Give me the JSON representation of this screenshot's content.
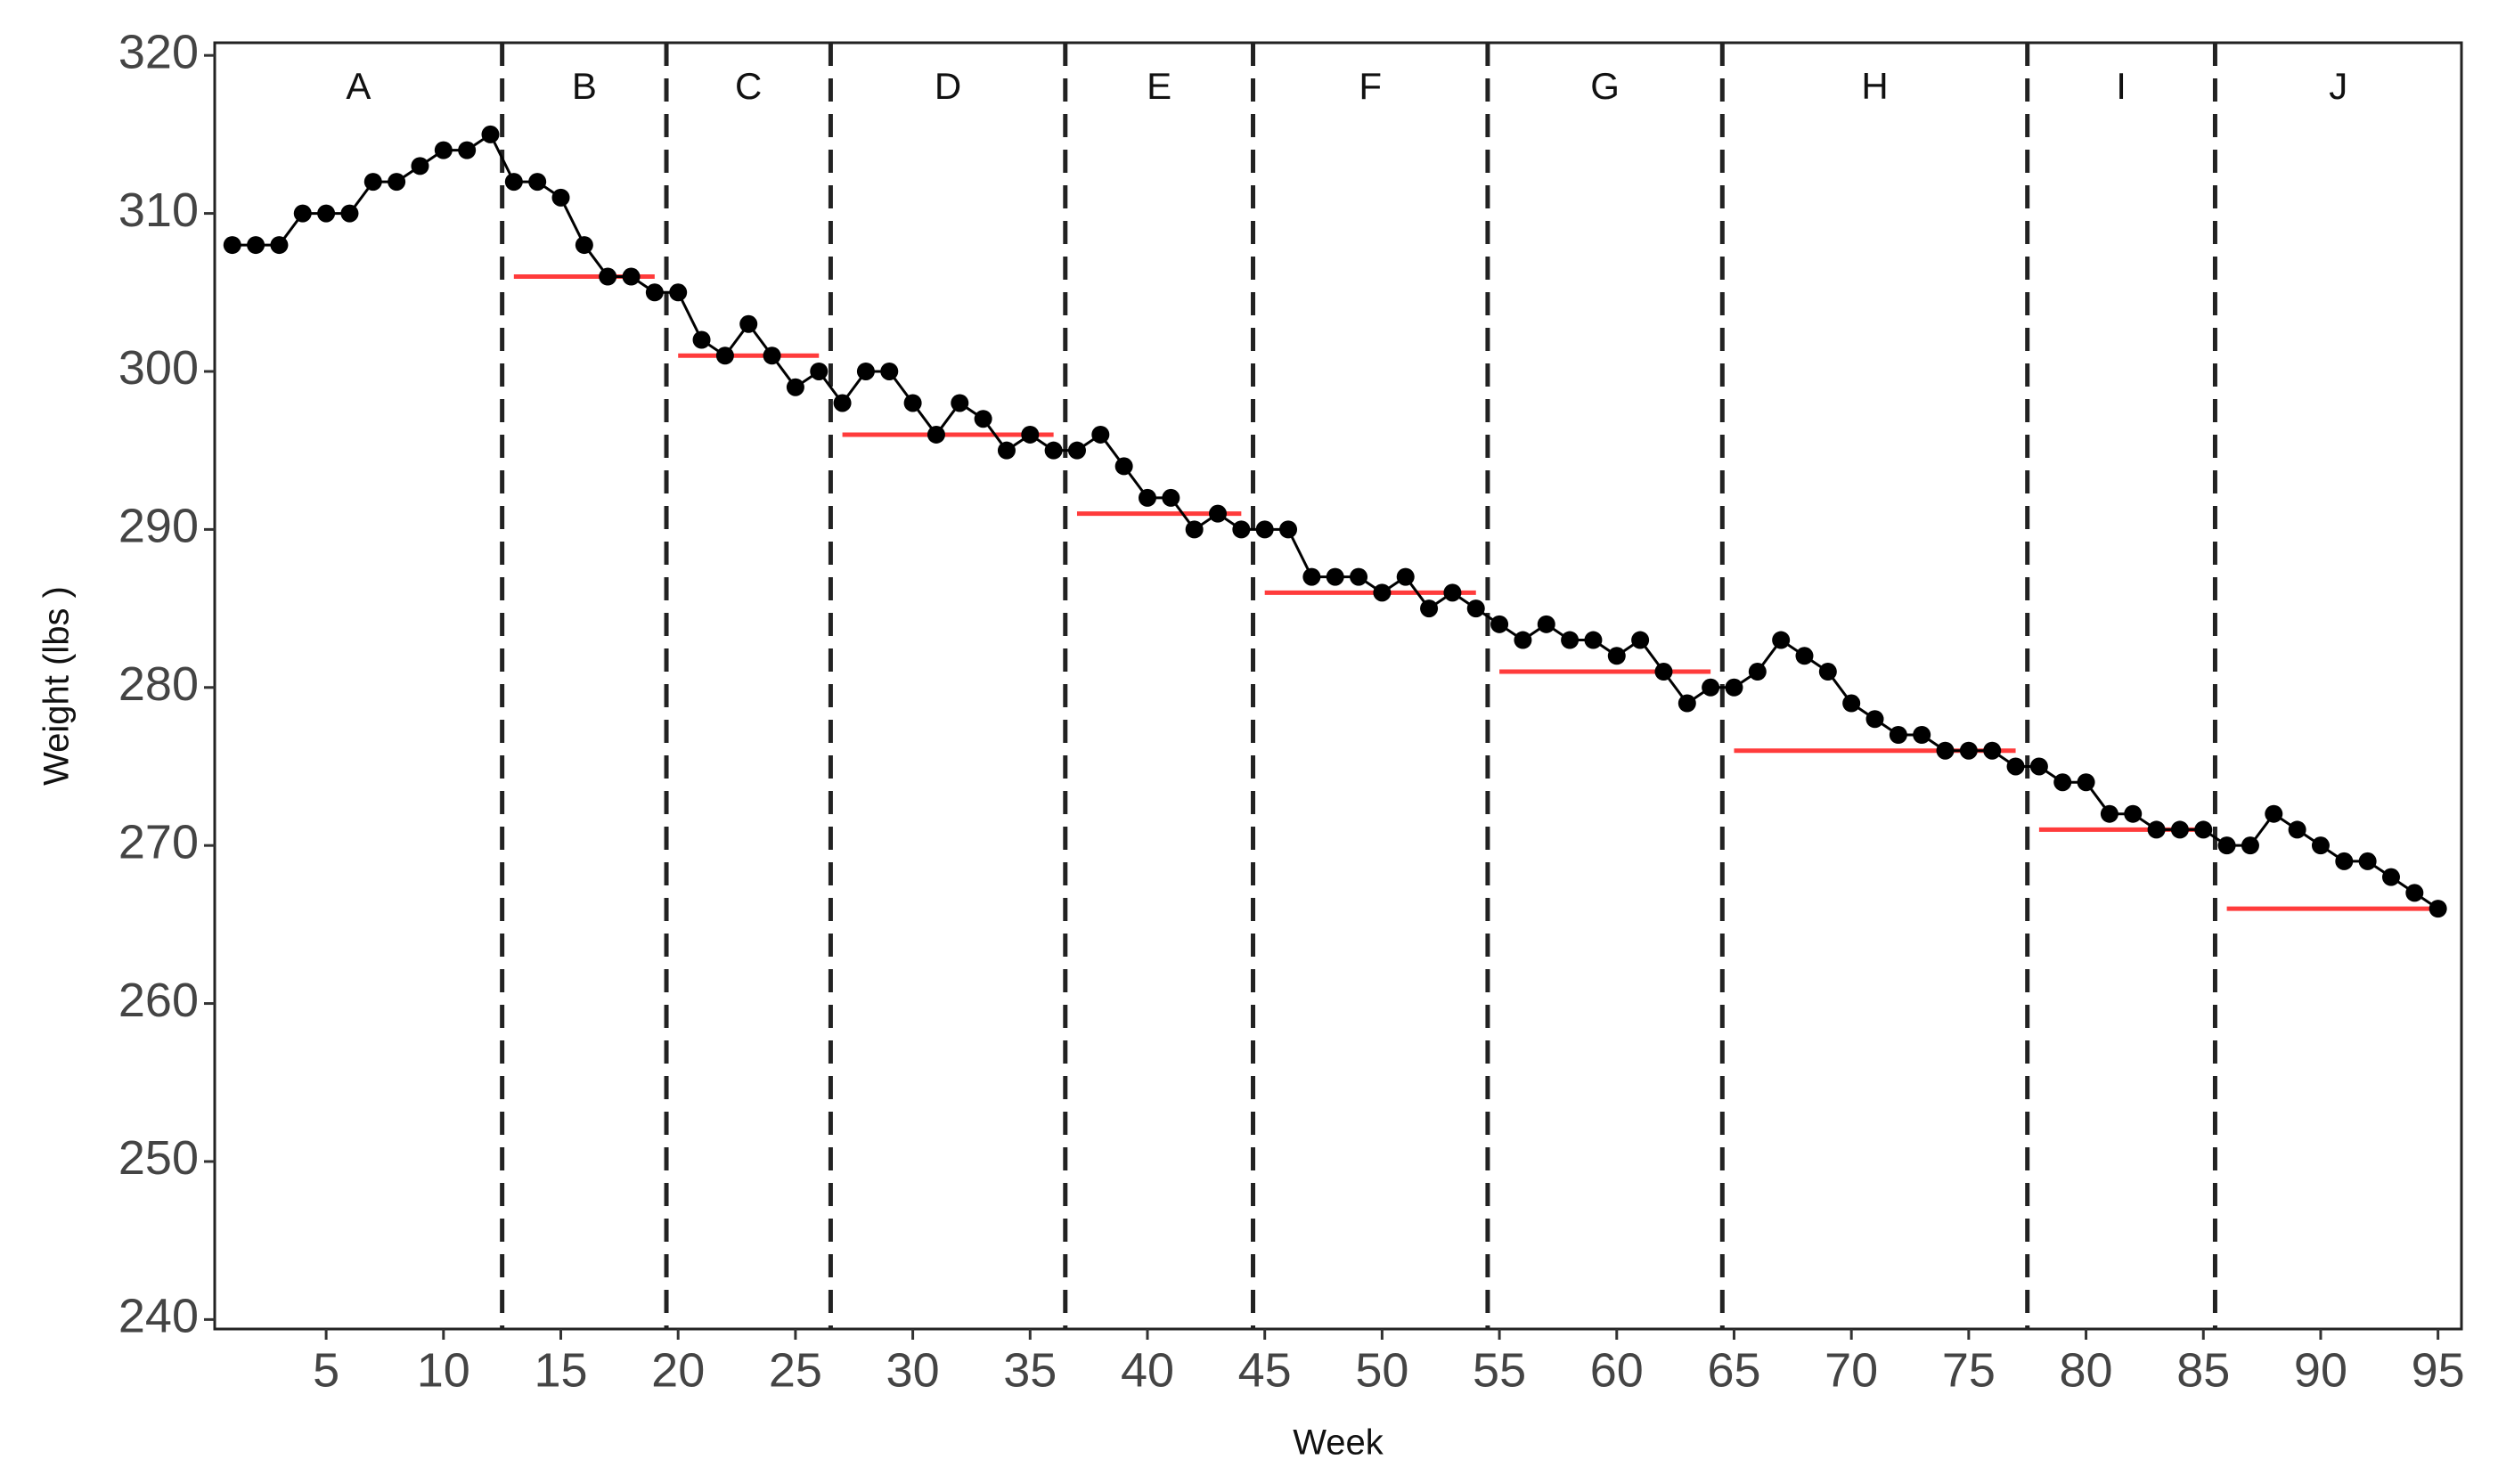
{
  "chart_data": {
    "type": "line",
    "x_label": "Week",
    "y_label": "Weight (lbs )",
    "x": [
      1,
      2,
      3,
      4,
      5,
      6,
      7,
      8,
      9,
      10,
      11,
      12,
      13,
      14,
      15,
      16,
      17,
      18,
      19,
      20,
      21,
      22,
      23,
      24,
      25,
      26,
      27,
      28,
      29,
      30,
      31,
      32,
      33,
      34,
      35,
      36,
      37,
      38,
      39,
      40,
      41,
      42,
      43,
      44,
      45,
      46,
      47,
      48,
      49,
      50,
      51,
      52,
      53,
      54,
      55,
      56,
      57,
      58,
      59,
      60,
      61,
      62,
      63,
      64,
      65,
      66,
      67,
      68,
      69,
      70,
      71,
      72,
      73,
      74,
      75,
      76,
      77,
      78,
      79,
      80,
      81,
      82,
      83,
      84,
      85,
      86,
      87,
      88,
      89,
      90,
      91,
      92,
      93,
      94,
      95
    ],
    "values": [
      308,
      308,
      308,
      310,
      310,
      310,
      312,
      312,
      313,
      314,
      314,
      315,
      312,
      312,
      311,
      308,
      306,
      306,
      305,
      305,
      302,
      301,
      303,
      301,
      299,
      300,
      298,
      300,
      300,
      298,
      296,
      298,
      297,
      295,
      296,
      295,
      295,
      296,
      294,
      292,
      292,
      290,
      291,
      290,
      290,
      290,
      287,
      287,
      287,
      286,
      287,
      285,
      286,
      285,
      284,
      283,
      284,
      283,
      283,
      282,
      283,
      281,
      279,
      280,
      280,
      281,
      283,
      282,
      281,
      279,
      278,
      277,
      277,
      276,
      276,
      276,
      275,
      275,
      274,
      274,
      272,
      272,
      271,
      271,
      271,
      270,
      270,
      272,
      271,
      270,
      269,
      269,
      268,
      267,
      266
    ],
    "color": "#000000",
    "phase_boundaries": [
      12.5,
      19.5,
      26.5,
      36.5,
      44.5,
      54.5,
      64.5,
      77.5,
      85.5
    ],
    "boundary_color": "#222222",
    "phases": [
      "A",
      "B",
      "C",
      "D",
      "E",
      "F",
      "G",
      "H",
      "I",
      "J"
    ],
    "targets": [
      {
        "start": 13,
        "end": 19,
        "value": 306
      },
      {
        "start": 20,
        "end": 26,
        "value": 301
      },
      {
        "start": 27,
        "end": 36,
        "value": 296
      },
      {
        "start": 37,
        "end": 44,
        "value": 291
      },
      {
        "start": 45,
        "end": 54,
        "value": 286
      },
      {
        "start": 55,
        "end": 64,
        "value": 281
      },
      {
        "start": 65,
        "end": 77,
        "value": 276
      },
      {
        "start": 78,
        "end": 85,
        "value": 271
      },
      {
        "start": 86,
        "end": 95,
        "value": 266
      }
    ],
    "target_color": "#ff3b3b",
    "xlim": [
      0.25,
      96
    ],
    "ylim": [
      239.4,
      320.8
    ],
    "xticks": [
      5,
      10,
      15,
      20,
      25,
      30,
      35,
      40,
      45,
      50,
      55,
      60,
      65,
      70,
      75,
      80,
      85,
      90,
      95
    ],
    "yticks": [
      240,
      250,
      260,
      270,
      280,
      290,
      300,
      310,
      320
    ],
    "grid": false
  }
}
